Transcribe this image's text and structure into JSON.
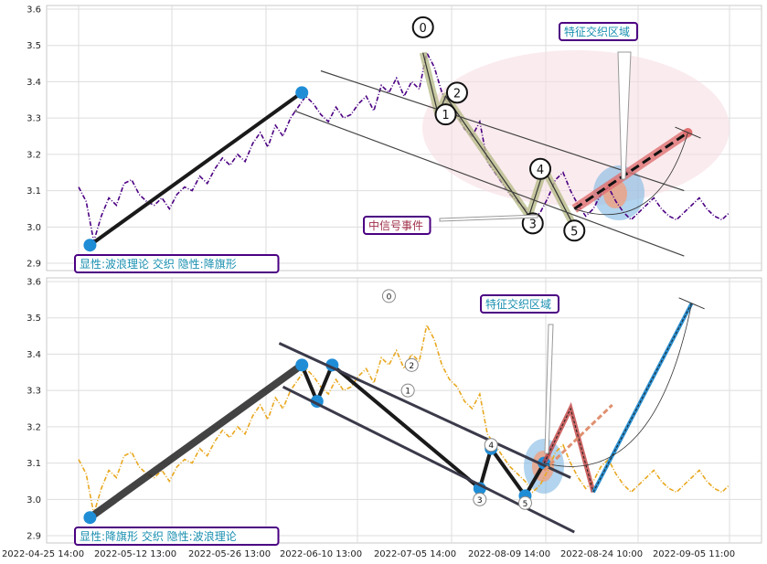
{
  "chart_data": [
    {
      "type": "line",
      "panel": "top",
      "ylim": [
        2.88,
        3.61
      ],
      "yticks": [
        2.9,
        3.0,
        3.1,
        3.2,
        3.3,
        3.4,
        3.5,
        3.6
      ],
      "ytick_labels": [
        "2.9",
        "3.0",
        "3.1",
        "3.2",
        "3.3",
        "3.4",
        "3.5",
        "3.6"
      ],
      "grid": true,
      "series": [
        {
          "kind": "price",
          "color": "#4b0082",
          "x": [
            0,
            2,
            4,
            6,
            8,
            10,
            12,
            14,
            16,
            18,
            20,
            22,
            24,
            26,
            28,
            30,
            32,
            34,
            36,
            38,
            40,
            42,
            44,
            46,
            48,
            50,
            52,
            54,
            56,
            58,
            60,
            62,
            64,
            66,
            68,
            70,
            72,
            74,
            76,
            78,
            80,
            82,
            84,
            86,
            88,
            90,
            92,
            94,
            96,
            98,
            100,
            102,
            104,
            106,
            108,
            110,
            112,
            114,
            116,
            118,
            120,
            122,
            124,
            126,
            128,
            130,
            132,
            134,
            136,
            138,
            140,
            142,
            144,
            146,
            148,
            150,
            152,
            154,
            156,
            158,
            160,
            162,
            164,
            166,
            168,
            170,
            172
          ],
          "y": [
            3.11,
            3.07,
            2.96,
            3.03,
            3.08,
            3.06,
            3.12,
            3.13,
            3.09,
            3.07,
            3.06,
            3.08,
            3.05,
            3.09,
            3.11,
            3.1,
            3.14,
            3.12,
            3.16,
            3.19,
            3.17,
            3.2,
            3.18,
            3.23,
            3.26,
            3.22,
            3.28,
            3.25,
            3.3,
            3.33,
            3.36,
            3.34,
            3.31,
            3.29,
            3.33,
            3.3,
            3.31,
            3.34,
            3.36,
            3.32,
            3.39,
            3.37,
            3.41,
            3.36,
            3.4,
            3.38,
            3.48,
            3.44,
            3.37,
            3.33,
            3.31,
            3.27,
            3.25,
            3.29,
            3.18,
            3.15,
            3.12,
            3.09,
            3.07,
            3.05,
            3.02,
            3.04,
            3.08,
            3.13,
            3.15,
            3.1,
            3.06,
            3.03,
            3.05,
            3.09,
            3.11,
            3.07,
            3.04,
            3.02,
            3.04,
            3.06,
            3.08,
            3.05,
            3.03,
            3.02,
            3.04,
            3.06,
            3.08,
            3.05,
            3.03,
            3.02,
            3.04
          ]
        },
        {
          "kind": "wave",
          "color": "#1a1a1a",
          "x": [
            3,
            59
          ],
          "y": [
            2.95,
            3.37
          ]
        },
        {
          "kind": "wave-path",
          "color": "#b8bc8a",
          "x": [
            91,
            95,
            97,
            119,
            123,
            131
          ],
          "y": [
            3.48,
            3.31,
            3.36,
            3.03,
            3.16,
            3.0
          ]
        },
        {
          "kind": "channel",
          "color": "#444444",
          "x": [
            64,
            160,
            57,
            160
          ],
          "y": [
            3.43,
            3.1,
            3.32,
            2.92
          ]
        },
        {
          "kind": "projection",
          "color": "#e07070",
          "x": [
            131,
            161
          ],
          "y": [
            3.05,
            3.26
          ]
        }
      ],
      "points": [
        {
          "label": "0",
          "x": 91,
          "y": 3.55
        },
        {
          "label": "1",
          "x": 97,
          "y": 3.31
        },
        {
          "label": "2",
          "x": 100,
          "y": 3.37
        },
        {
          "label": "3",
          "x": 120,
          "y": 3.01
        },
        {
          "label": "4",
          "x": 122,
          "y": 3.16
        },
        {
          "label": "5",
          "x": 131,
          "y": 2.99
        }
      ],
      "annotations": [
        {
          "text": "特征交织区域",
          "color": "#1a8fb0",
          "border": "#4b0082"
        },
        {
          "text": "中信号事件",
          "color": "#a0304a",
          "border": "#4b0082"
        },
        {
          "text": "显性:波浪理论 交织 隐性:降旗形",
          "color": "#1a8fb0",
          "border": "#4b0082"
        }
      ]
    },
    {
      "type": "line",
      "panel": "bottom",
      "ylim": [
        2.88,
        3.61
      ],
      "yticks": [
        2.9,
        3.0,
        3.1,
        3.2,
        3.3,
        3.4,
        3.5,
        3.6
      ],
      "ytick_labels": [
        "2.9",
        "3.0",
        "3.1",
        "3.2",
        "3.3",
        "3.4",
        "3.5",
        "3.6"
      ],
      "grid": true,
      "xtick_labels": [
        "2022-04-25 14:00",
        "2022-05-12 13:00",
        "2022-05-26 13:00",
        "2022-06-10 13:00",
        "2022-07-05 14:00",
        "2022-08-09 14:00",
        "2022-08-24 10:00",
        "2022-09-05 11:00"
      ],
      "series": [
        {
          "kind": "price",
          "color": "#e8a820",
          "x": [
            0,
            2,
            4,
            6,
            8,
            10,
            12,
            14,
            16,
            18,
            20,
            22,
            24,
            26,
            28,
            30,
            32,
            34,
            36,
            38,
            40,
            42,
            44,
            46,
            48,
            50,
            52,
            54,
            56,
            58,
            60,
            62,
            64,
            66,
            68,
            70,
            72,
            74,
            76,
            78,
            80,
            82,
            84,
            86,
            88,
            90,
            92,
            94,
            96,
            98,
            100,
            102,
            104,
            106,
            108,
            110,
            112,
            114,
            116,
            118,
            120,
            122,
            124,
            126,
            128,
            130,
            132,
            134,
            136,
            138,
            140,
            142,
            144,
            146,
            148,
            150,
            152,
            154,
            156,
            158,
            160,
            162,
            164,
            166,
            168,
            170,
            172
          ],
          "y": [
            3.11,
            3.07,
            2.96,
            3.03,
            3.08,
            3.06,
            3.12,
            3.13,
            3.09,
            3.07,
            3.06,
            3.08,
            3.05,
            3.09,
            3.11,
            3.1,
            3.14,
            3.12,
            3.16,
            3.19,
            3.17,
            3.2,
            3.18,
            3.23,
            3.26,
            3.22,
            3.28,
            3.25,
            3.3,
            3.33,
            3.36,
            3.34,
            3.31,
            3.29,
            3.33,
            3.3,
            3.31,
            3.34,
            3.36,
            3.32,
            3.39,
            3.37,
            3.41,
            3.36,
            3.4,
            3.38,
            3.48,
            3.44,
            3.37,
            3.33,
            3.31,
            3.27,
            3.25,
            3.29,
            3.18,
            3.15,
            3.12,
            3.09,
            3.07,
            3.05,
            3.02,
            3.04,
            3.08,
            3.13,
            3.15,
            3.1,
            3.06,
            3.03,
            3.05,
            3.09,
            3.11,
            3.07,
            3.04,
            3.02,
            3.04,
            3.06,
            3.08,
            3.05,
            3.03,
            3.02,
            3.04,
            3.06,
            3.08,
            3.05,
            3.03,
            3.02,
            3.04
          ]
        },
        {
          "kind": "flag-path",
          "color": "#1a1a1a",
          "x": [
            3,
            59,
            63,
            67,
            106,
            109,
            118,
            123
          ],
          "y": [
            2.95,
            3.37,
            3.27,
            3.37,
            3.03,
            3.14,
            3.01,
            3.1
          ]
        },
        {
          "kind": "channel",
          "color": "#3a3a4a",
          "x": [
            53,
            130,
            54,
            131
          ],
          "y": [
            3.43,
            3.06,
            3.31,
            2.91
          ]
        },
        {
          "kind": "projection",
          "color": "#c04040",
          "x": [
            123,
            130,
            136,
            162
          ],
          "y": [
            3.1,
            3.25,
            3.02,
            3.54
          ]
        },
        {
          "kind": "projection-dashed",
          "color": "#e09070",
          "x": [
            123,
            141
          ],
          "y": [
            3.08,
            3.26
          ]
        }
      ],
      "points": [
        {
          "label": "0",
          "x": 82,
          "y": 3.56
        },
        {
          "label": "1",
          "x": 87,
          "y": 3.3
        },
        {
          "label": "2",
          "x": 88,
          "y": 3.37
        },
        {
          "label": "3",
          "x": 106,
          "y": 3.0
        },
        {
          "label": "4",
          "x": 109,
          "y": 3.15
        },
        {
          "label": "5",
          "x": 118,
          "y": 2.99
        }
      ],
      "annotations": [
        {
          "text": "特征交织区域",
          "color": "#1a8fb0",
          "border": "#4b0082"
        },
        {
          "text": "显性:降旗形 交织 隐性:波浪理论",
          "color": "#1a8fb0",
          "border": "#4b0082"
        }
      ]
    }
  ]
}
